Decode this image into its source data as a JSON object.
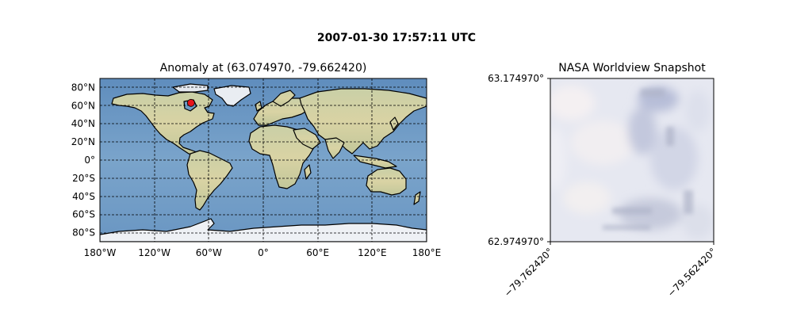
{
  "figure": {
    "suptitle": "2007-01-30 17:57:11 UTC"
  },
  "chart_data": [
    {
      "type": "scatter",
      "title": "Anomaly at (63.074970, -79.662420)",
      "xlabel": "",
      "ylabel": "",
      "xlim": [
        -180,
        180
      ],
      "ylim": [
        -90,
        90
      ],
      "projection": "PlateCarree world map",
      "grid": true,
      "xticks": [
        -180,
        -120,
        -60,
        0,
        60,
        120,
        180
      ],
      "xtick_labels": [
        "180°W",
        "120°W",
        "60°W",
        "0°",
        "60°E",
        "120°E",
        "180°E"
      ],
      "yticks": [
        80,
        60,
        40,
        20,
        0,
        -20,
        -40,
        -60,
        -80
      ],
      "ytick_labels": [
        "80°N",
        "60°N",
        "40°N",
        "20°N",
        "0°",
        "20°S",
        "40°S",
        "60°S",
        "80°S"
      ],
      "points": [
        {
          "lon": -79.66242,
          "lat": 63.07497
        }
      ],
      "marker_color": "#e8141b",
      "ocean_color": "#6f9ac4",
      "land_color": "#dcdcb0"
    },
    {
      "type": "image",
      "title": "NASA Worldview Snapshot",
      "xlim": [
        -79.76242,
        -79.56242
      ],
      "ylim": [
        62.97497,
        63.17497
      ],
      "xtick_labels": [
        "−79.762420°",
        "−79.562420°"
      ],
      "ytick_labels": [
        "63.174970°",
        "62.974970°"
      ],
      "image_description_colors": [
        "#e8ecf4",
        "#cfd3e3",
        "#f0ebee"
      ]
    }
  ]
}
